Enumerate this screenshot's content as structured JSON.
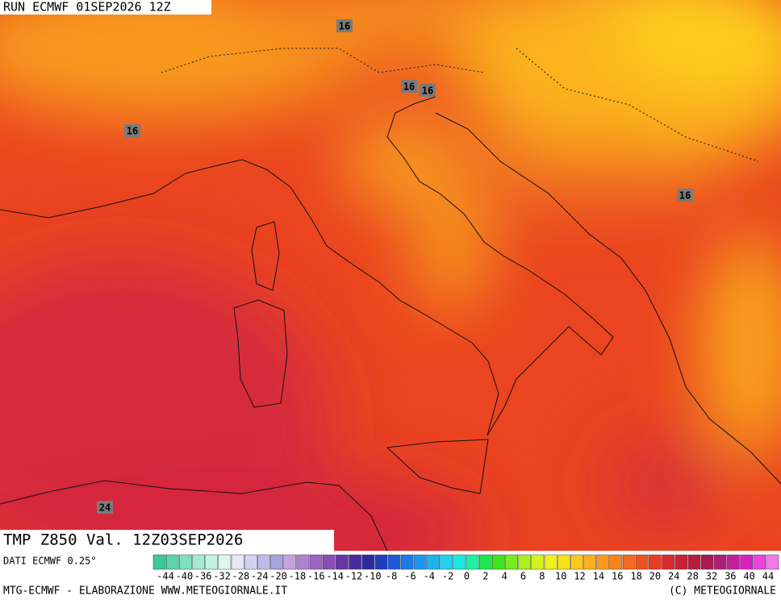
{
  "header": {
    "run": "RUN ECMWF 01SEP2026 12Z"
  },
  "map": {
    "contour_labels": [
      16,
      16,
      16,
      16,
      16,
      24
    ]
  },
  "panel": {
    "title": "TMP Z850 Val. 12Z03SEP2026",
    "source": "DATI ECMWF 0.25°"
  },
  "colorbar": {
    "labels": [
      -44,
      -40,
      -36,
      -32,
      -28,
      -24,
      -20,
      -18,
      -16,
      -14,
      -12,
      -10,
      -8,
      -6,
      -4,
      -2,
      0,
      2,
      4,
      6,
      8,
      10,
      12,
      14,
      16,
      18,
      20,
      24,
      28,
      32,
      36,
      40,
      44
    ]
  },
  "footer": {
    "left": "MTG-ECMWF - ELABORAZIONE WWW.METEOGIORNALE.IT",
    "right": "(C) METEOGIORNALE"
  }
}
